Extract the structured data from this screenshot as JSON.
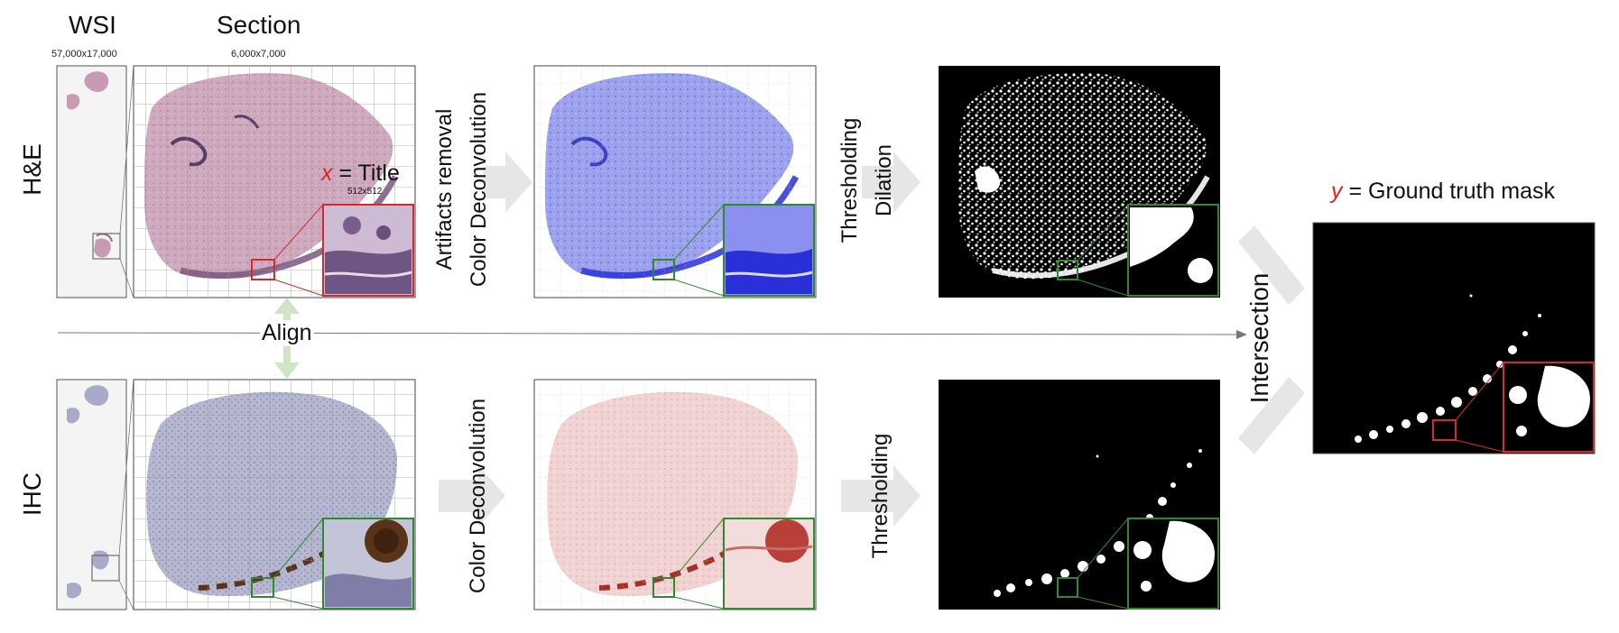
{
  "columns": {
    "wsi_title": "WSI",
    "wsi_size": "57,000x17,000",
    "section_title": "Section",
    "section_size": "6,000x7,000"
  },
  "rows": {
    "he": "H&E",
    "ihc": "IHC"
  },
  "tile": {
    "variable": "x",
    "equals_text": "= Title",
    "size": "512x512"
  },
  "align_label": "Align",
  "steps": {
    "he_step1_line1": "Artifacts removal",
    "he_step1_line2": "Color Deconvolution",
    "he_step2_line1": "Thresholding",
    "he_step2_line2": "Dilation",
    "ihc_step1": "Color Deconvolution",
    "ihc_step2": "Thresholding",
    "intersection": "Intersection"
  },
  "output": {
    "variable": "y",
    "equals_text": "= Ground truth mask"
  },
  "colors": {
    "he_tissue": "#c9a3b8",
    "he_dark": "#6a4a7a",
    "blue_tissue": "#8f95ea",
    "blue_dark": "#2a30d8",
    "ihc_tissue": "#a9aac8",
    "ihc_brown": "#5a3418",
    "pink_tissue": "#ecc7c6",
    "red_stain": "#a43028",
    "tile_red": "#d42a2a",
    "tile_green": "#2f8a2f",
    "arrow_gray": "#e6e6e6",
    "align_green": "#cfe6c6"
  }
}
